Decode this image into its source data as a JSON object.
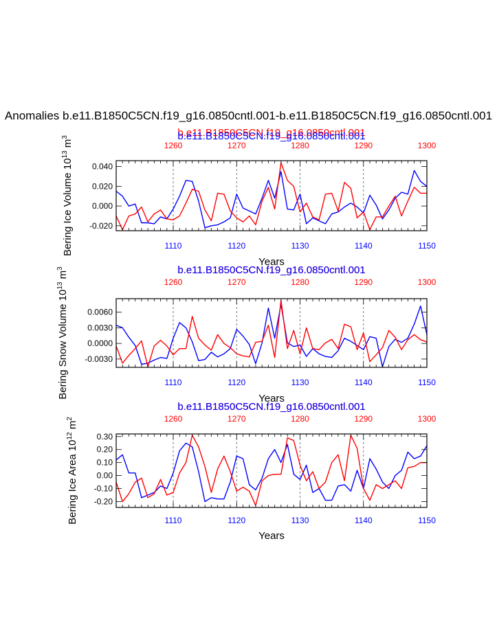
{
  "page_title": "Anomalies b.e11.B1850C5CN.f19_g16.0850cntl.001-b.e11.B1850C5CN.f19_g16.0850cntl.001",
  "series_names": {
    "red": "b.e11.B1850C5CN.f19_g16.0850cntl.001",
    "blue": "b.e11.B1850C5CN.f19_g16.0850cntl.001"
  },
  "colors": {
    "red": "#ff0000",
    "blue": "#0000ff",
    "axis": "#000000",
    "grid": "#555555"
  },
  "xlabel": "Years",
  "chart_data": [
    {
      "type": "line",
      "ylabel_main": "Bering Ice Volume 10",
      "ylabel_exp": "13",
      "ylabel_unit": " m",
      "ylabel_unit_exp": "3",
      "bottom_axis": {
        "range": [
          1101,
          1150
        ],
        "ticks": [
          1110,
          1120,
          1130,
          1140,
          1150
        ]
      },
      "top_axis": {
        "range": [
          1251,
          1300
        ],
        "ticks": [
          1260,
          1270,
          1280,
          1290,
          1300
        ]
      },
      "ylim": [
        -0.025,
        0.046
      ],
      "yticks": [
        -0.02,
        0.0,
        0.02,
        0.04
      ],
      "ytick_labels": [
        "-0.020",
        "0.000",
        "0.020",
        "0.040"
      ],
      "grid_x": [
        1110,
        1120,
        1130,
        1140
      ],
      "series": [
        {
          "name": "blue",
          "values": [
            0.015,
            0.01,
            0.0,
            0.002,
            -0.017,
            -0.017,
            -0.018,
            -0.011,
            -0.013,
            -0.003,
            0.01,
            0.026,
            0.025,
            0.005,
            -0.022,
            -0.02,
            -0.019,
            -0.016,
            -0.012,
            0.012,
            -0.002,
            -0.005,
            -0.008,
            0.008,
            0.026,
            0.008,
            0.035,
            -0.003,
            -0.004,
            0.012,
            -0.018,
            -0.012,
            -0.015,
            -0.018,
            -0.008,
            -0.006,
            -0.001,
            0.003,
            -0.001,
            -0.007,
            0.011,
            0.001,
            -0.013,
            -0.004,
            0.008,
            0.014,
            0.012,
            0.036,
            0.025,
            0.02
          ]
        },
        {
          "name": "red",
          "values": [
            -0.01,
            -0.024,
            -0.01,
            -0.008,
            -0.001,
            -0.016,
            -0.008,
            -0.004,
            -0.013,
            -0.014,
            -0.01,
            0.003,
            0.017,
            0.015,
            -0.004,
            -0.015,
            0.013,
            0.012,
            -0.005,
            -0.012,
            -0.016,
            -0.01,
            -0.019,
            0.005,
            0.019,
            -0.003,
            0.044,
            0.026,
            0.02,
            -0.006,
            0.003,
            -0.011,
            -0.014,
            0.012,
            0.013,
            -0.005,
            0.024,
            0.018,
            -0.012,
            -0.006,
            -0.024,
            -0.011,
            -0.011,
            0.0,
            0.01,
            -0.01,
            0.005,
            0.019,
            0.013,
            0.013
          ]
        }
      ]
    },
    {
      "type": "line",
      "ylabel_main": "Bering Snow Volume 10",
      "ylabel_exp": "13",
      "ylabel_unit": " m",
      "ylabel_unit_exp": "3",
      "bottom_axis": {
        "range": [
          1101,
          1150
        ],
        "ticks": [
          1110,
          1120,
          1130,
          1140,
          1150
        ]
      },
      "top_axis": {
        "range": [
          1251,
          1300
        ],
        "ticks": [
          1260,
          1270,
          1280,
          1290,
          1300
        ]
      },
      "ylim": [
        -0.0046,
        0.0086
      ],
      "yticks": [
        -0.003,
        0.0,
        0.003,
        0.006
      ],
      "ytick_labels": [
        "-0.0030",
        "0.0000",
        "0.0030",
        "0.0060"
      ],
      "grid_x": [
        1110,
        1120,
        1130,
        1140
      ],
      "series": [
        {
          "name": "blue",
          "values": [
            0.0035,
            0.003,
            0.0012,
            -0.0004,
            -0.004,
            -0.0038,
            -0.0032,
            -0.0027,
            -0.0029,
            0.001,
            0.004,
            0.003,
            0.0003,
            -0.0033,
            -0.0031,
            -0.0017,
            -0.0026,
            -0.002,
            -0.001,
            0.0027,
            0.0014,
            -0.0002,
            -0.0039,
            0.0001,
            0.0068,
            0.001,
            0.0075,
            0.0001,
            -0.0006,
            -0.0003,
            -0.0025,
            -0.001,
            -0.002,
            -0.0025,
            -0.0027,
            -0.0014,
            0.001,
            0.0004,
            -0.0004,
            -0.0012,
            0.0013,
            0.001,
            -0.0045,
            -0.0006,
            0.0008,
            0.0002,
            0.001,
            0.0037,
            0.0072,
            0.0017
          ]
        },
        {
          "name": "red",
          "values": [
            -0.0005,
            -0.0038,
            -0.0023,
            -0.001,
            0.0005,
            -0.0045,
            -0.0005,
            0.0006,
            -0.0005,
            -0.0022,
            -0.001,
            -0.001,
            0.0052,
            0.001,
            -0.0003,
            -0.0013,
            0.0017,
            0.0,
            -0.0008,
            -0.002,
            -0.0024,
            -0.0026,
            0.0002,
            0.0004,
            0.0035,
            -0.0027,
            0.0083,
            -0.001,
            0.0025,
            -0.002,
            0.003,
            -0.001,
            -0.0012,
            0.0001,
            0.0008,
            -0.001,
            0.0037,
            0.0032,
            -0.0012,
            0.002,
            -0.0035,
            -0.0022,
            -0.0008,
            0.0025,
            0.0012,
            -0.0012,
            0.0007,
            0.0017,
            0.0007,
            0.0003
          ]
        }
      ]
    },
    {
      "type": "line",
      "ylabel_main": "Bering Ice Area 10",
      "ylabel_exp": "12",
      "ylabel_unit": " m",
      "ylabel_unit_exp": "2",
      "bottom_axis": {
        "range": [
          1101,
          1150
        ],
        "ticks": [
          1110,
          1120,
          1130,
          1140,
          1150
        ]
      },
      "top_axis": {
        "range": [
          1251,
          1300
        ],
        "ticks": [
          1260,
          1270,
          1280,
          1290,
          1300
        ]
      },
      "ylim": [
        -0.245,
        0.32
      ],
      "yticks": [
        -0.2,
        -0.1,
        0.0,
        0.1,
        0.2,
        0.3
      ],
      "ytick_labels": [
        "-0.20",
        "-0.10",
        "0.00",
        "0.10",
        "0.20",
        "0.30"
      ],
      "grid_x": [
        1110,
        1120,
        1130,
        1140
      ],
      "series": [
        {
          "name": "blue",
          "values": [
            0.12,
            0.16,
            0.02,
            0.02,
            -0.17,
            -0.15,
            -0.13,
            -0.08,
            -0.1,
            0.02,
            0.19,
            0.25,
            0.22,
            0.03,
            -0.2,
            -0.17,
            -0.18,
            -0.18,
            -0.05,
            0.15,
            0.13,
            -0.07,
            -0.11,
            -0.02,
            0.13,
            0.2,
            0.1,
            0.24,
            0.01,
            -0.03,
            0.08,
            -0.13,
            -0.1,
            -0.19,
            -0.19,
            -0.08,
            -0.07,
            -0.12,
            0.04,
            -0.1,
            0.13,
            0.05,
            -0.05,
            -0.1,
            0.0,
            0.04,
            0.18,
            0.13,
            0.15,
            0.23
          ]
        },
        {
          "name": "red",
          "values": [
            -0.05,
            -0.2,
            -0.14,
            -0.05,
            -0.02,
            -0.17,
            -0.14,
            -0.03,
            -0.15,
            -0.13,
            0.02,
            0.1,
            0.31,
            0.22,
            0.07,
            -0.13,
            0.05,
            0.15,
            0.03,
            -0.12,
            -0.09,
            -0.12,
            -0.23,
            -0.04,
            0.0,
            0.01,
            0.01,
            0.29,
            0.27,
            0.08,
            -0.04,
            0.03,
            -0.1,
            -0.05,
            0.1,
            0.16,
            -0.04,
            0.31,
            0.21,
            -0.1,
            -0.19,
            -0.07,
            -0.1,
            -0.07,
            -0.04,
            -0.1,
            0.06,
            0.07,
            0.1,
            0.1
          ]
        }
      ]
    }
  ]
}
